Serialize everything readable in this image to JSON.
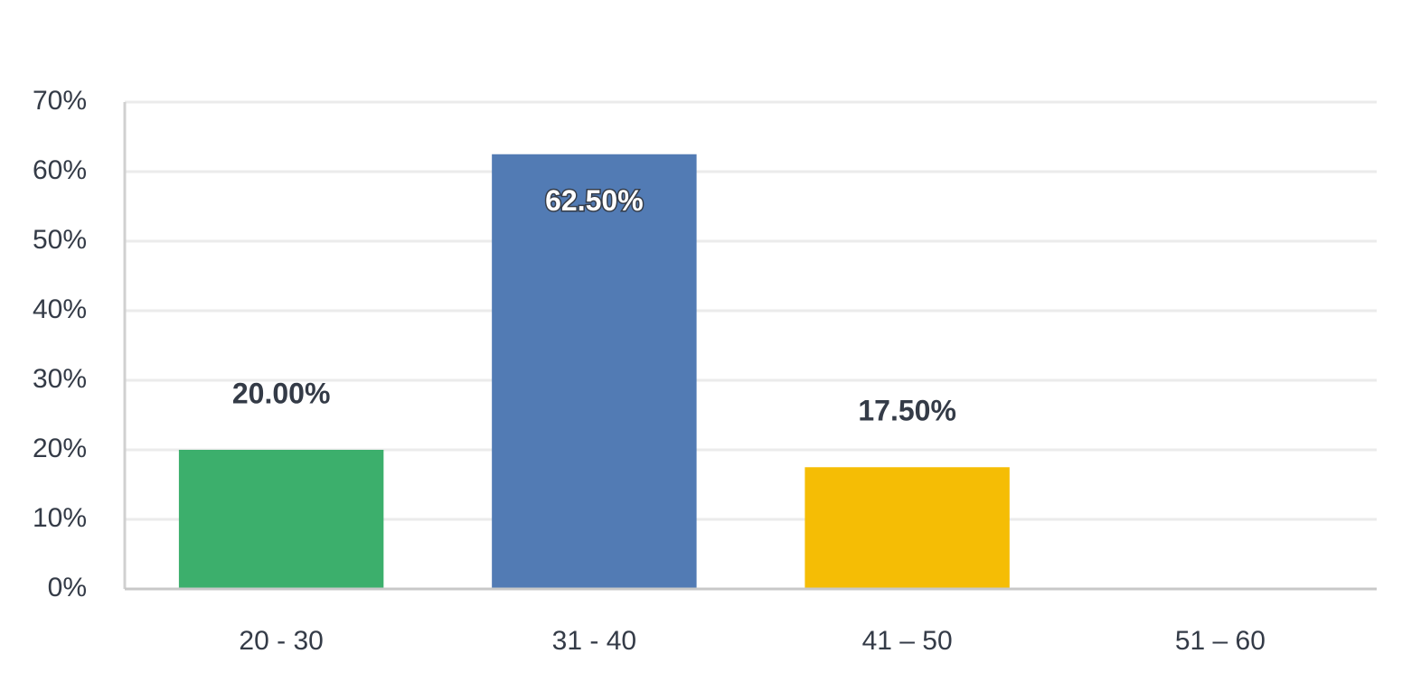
{
  "chart_data": {
    "type": "bar",
    "categories": [
      "20 - 30",
      "31 - 40",
      "41 – 50",
      "51 – 60"
    ],
    "values": [
      20,
      62.5,
      17.5,
      0
    ],
    "value_labels": [
      "20.00%",
      "62.50%",
      "17.50%",
      null
    ],
    "colors": [
      "#3caf6c",
      "#527bb4",
      "#f5bd05",
      null
    ],
    "ylim": [
      0,
      70
    ],
    "yticks": [
      {
        "value": 0,
        "label": "0%"
      },
      {
        "value": 10,
        "label": "10%"
      },
      {
        "value": 20,
        "label": "20%"
      },
      {
        "value": 30,
        "label": "30%"
      },
      {
        "value": 40,
        "label": "40%"
      },
      {
        "value": 50,
        "label": "50%"
      },
      {
        "value": 60,
        "label": "60%"
      },
      {
        "value": 70,
        "label": "70%"
      }
    ],
    "grid": true
  }
}
